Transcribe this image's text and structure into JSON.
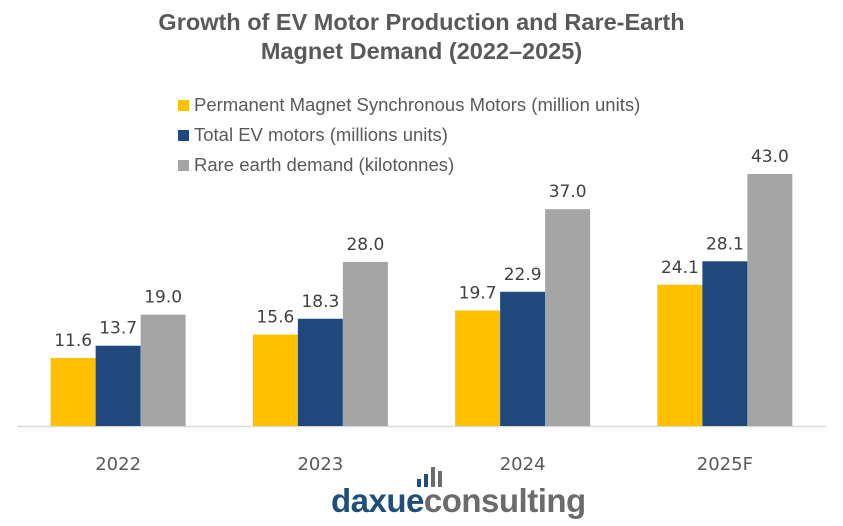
{
  "chart_data": {
    "type": "bar",
    "title": "Growth of EV Motor Production and Rare-Earth Magnet Demand (2022–2025)",
    "title_lines": [
      "Growth of EV Motor Production and Rare-Earth",
      "Magnet Demand (2022–2025)"
    ],
    "xlabel": "",
    "ylabel": "",
    "categories": [
      "2022",
      "2023",
      "2024",
      "2025F"
    ],
    "series": [
      {
        "name": "Permanent Magnet Synchronous Motors (million units)",
        "color": "#ffc000",
        "values": [
          11.6,
          15.6,
          19.7,
          24.1
        ],
        "labels": [
          "11.6",
          "15.6",
          "19.7",
          "24.1"
        ]
      },
      {
        "name": "Total EV motors (millions units)",
        "color": "#1f497d",
        "values": [
          13.7,
          18.3,
          22.9,
          28.1
        ],
        "labels": [
          "13.7",
          "18.3",
          "22.9",
          "28.1"
        ]
      },
      {
        "name": "Rare earth demand (kilotonnes)",
        "color": "#a5a5a5",
        "values": [
          19.0,
          28.0,
          37.0,
          43.0
        ],
        "labels": [
          "19.0",
          "28.0",
          "37.0",
          "43.0"
        ]
      }
    ],
    "ylim": [
      0,
      43
    ],
    "grid": false,
    "y_axis_visible": false,
    "legend_position": "top-center",
    "data_labels": true
  },
  "logo": {
    "part1": "daxue",
    "part2": "consulting",
    "colors": {
      "part1": "#1f4e79",
      "part2": "#6b6b6b"
    }
  }
}
